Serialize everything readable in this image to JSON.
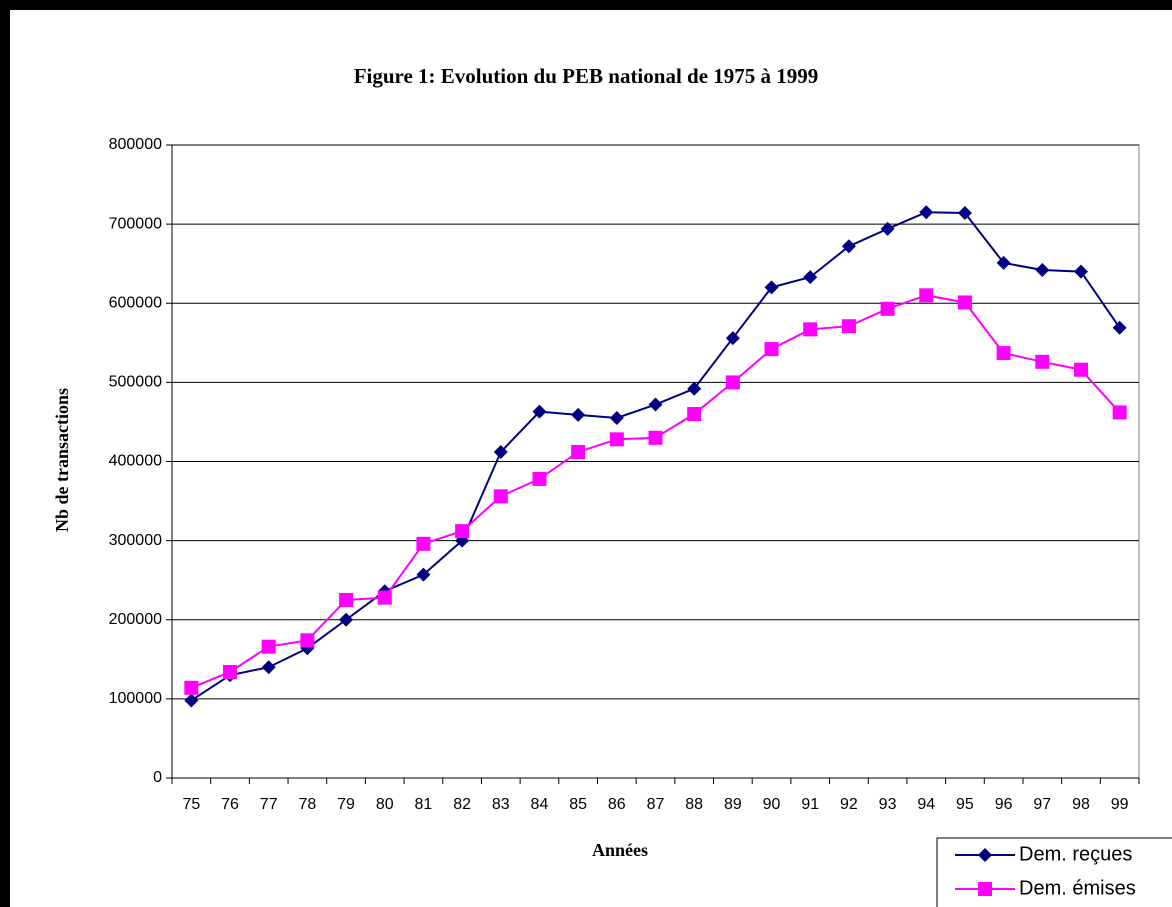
{
  "chart_data": {
    "type": "line",
    "title": "Figure 1: Evolution du PEB national de 1975 à 1999",
    "x_label": "Années",
    "y_label": "Nb de transactions",
    "categories": [
      "75",
      "76",
      "77",
      "78",
      "79",
      "80",
      "81",
      "82",
      "83",
      "84",
      "85",
      "86",
      "87",
      "88",
      "89",
      "90",
      "91",
      "92",
      "93",
      "94",
      "95",
      "96",
      "97",
      "98",
      "99"
    ],
    "series": [
      {
        "name": "Dem. reçues",
        "color": "#000080",
        "marker": "diamond",
        "values": [
          98000,
          130000,
          140000,
          164000,
          200000,
          236000,
          257000,
          300000,
          412000,
          463000,
          459000,
          455000,
          472000,
          492000,
          556000,
          620000,
          633000,
          672000,
          694000,
          715000,
          714000,
          651000,
          642000,
          640000,
          569000
        ]
      },
      {
        "name": "Dem. émises",
        "color": "#ff00ff",
        "marker": "square",
        "values": [
          114000,
          134000,
          166000,
          174000,
          225000,
          228000,
          296000,
          312000,
          356000,
          378000,
          412000,
          428000,
          430000,
          460000,
          500000,
          542000,
          567000,
          571000,
          593000,
          610000,
          601000,
          537000,
          526000,
          516000,
          462000
        ]
      }
    ],
    "ylim": [
      0,
      800000
    ],
    "yticks": [
      0,
      100000,
      200000,
      300000,
      400000,
      500000,
      600000,
      700000,
      800000
    ],
    "grid": true,
    "legend": "bottom-right"
  }
}
